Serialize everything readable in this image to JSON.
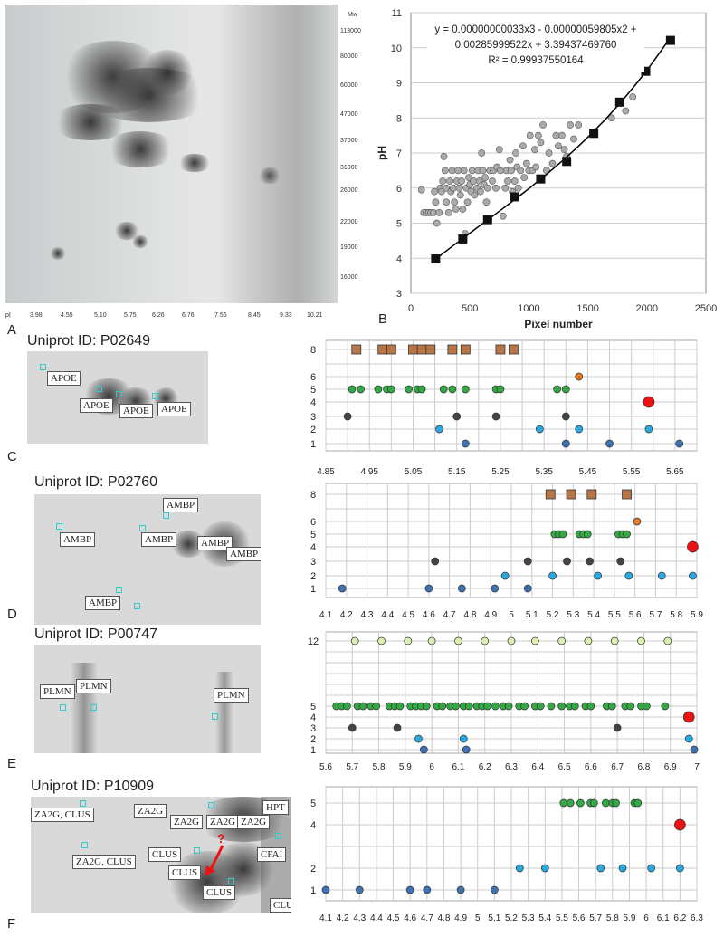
{
  "labels": {
    "A": "A",
    "B": "B",
    "C": "C",
    "D": "D",
    "E": "E",
    "F": "F"
  },
  "gelA": {
    "mw_title": "Mw",
    "pi_title": "pI",
    "mw_ticks": [
      "113000",
      "80000",
      "60000",
      "47000",
      "37000",
      "31000",
      "26000",
      "22000",
      "19000",
      "16000"
    ],
    "pi_ticks": [
      "3.98",
      "4.55",
      "5.10",
      "5.75",
      "6.26",
      "6.76",
      "7.56",
      "8.45",
      "9.33",
      "10.21"
    ]
  },
  "panels": {
    "C": {
      "uniprot": "Uniprot ID: P02649",
      "tags": [
        "APOE",
        "APOE",
        "APOE",
        "APOE"
      ]
    },
    "D": {
      "uniprot": "Uniprot ID: P02760",
      "tags": [
        "AMBP",
        "AMBP",
        "AMBP",
        "AMBP",
        "AMBP",
        "AMBP"
      ]
    },
    "E": {
      "uniprot": "Uniprot ID: P00747",
      "tags": [
        "PLMN",
        "PLMN",
        "PLMN"
      ]
    },
    "F": {
      "uniprot": "Uniprot ID: P10909",
      "tags": [
        "ZA2G, CLUS",
        "ZA2G, CLUS",
        "ZA2G",
        "ZA2G",
        "ZA2G",
        "ZA2G",
        "HPT",
        "CLUS",
        "CLUS",
        "CLUS",
        "CFAI",
        "CLUS"
      ],
      "question": "?"
    }
  },
  "colors": {
    "line": "#000000",
    "scatter": "#aaaaaa",
    "dark_blue": "#3f72b5",
    "light_blue": "#2aa8e0",
    "charcoal": "#444444",
    "green": "#33a844",
    "orange": "#e07b2a",
    "brown": "#b87545",
    "red": "#ee1111",
    "lime": "#dcefb0"
  },
  "chart_data": [
    {
      "id": "B",
      "type": "scatter",
      "xlabel": "Pixel number",
      "ylabel": "pH",
      "xlim": [
        0,
        2500
      ],
      "ylim": [
        3,
        11
      ],
      "xticks": [
        0,
        500,
        1000,
        1500,
        2000,
        2500
      ],
      "yticks": [
        3,
        4,
        5,
        6,
        7,
        8,
        9,
        10,
        11
      ],
      "annotation": {
        "line1": "y = 0.00000000033x3 - 0.00000059805x2 +",
        "line2": "0.00285999522x + 3.39437469760",
        "line3": "R² = 0.99937550164"
      },
      "fit_coefficients": [
        3.3e-10,
        -5.9805e-07,
        0.00285999522,
        3.3943746976
      ],
      "calibration_points": [
        [
          210,
          3.98
        ],
        [
          440,
          4.55
        ],
        [
          650,
          5.1
        ],
        [
          880,
          5.75
        ],
        [
          1100,
          6.26
        ],
        [
          1320,
          6.76
        ],
        [
          1550,
          7.56
        ],
        [
          1770,
          8.45
        ],
        [
          1990,
          9.33
        ],
        [
          2200,
          10.21
        ]
      ],
      "scatter_points": [
        [
          90,
          5.95
        ],
        [
          110,
          5.3
        ],
        [
          130,
          5.3
        ],
        [
          150,
          5.3
        ],
        [
          170,
          5.3
        ],
        [
          190,
          5.3
        ],
        [
          200,
          5.9
        ],
        [
          210,
          5.6
        ],
        [
          220,
          5.0
        ],
        [
          240,
          5.3
        ],
        [
          250,
          6.0
        ],
        [
          260,
          5.9
        ],
        [
          270,
          6.2
        ],
        [
          280,
          6.9
        ],
        [
          290,
          6.5
        ],
        [
          300,
          6.0
        ],
        [
          300,
          5.6
        ],
        [
          320,
          5.3
        ],
        [
          330,
          6.2
        ],
        [
          340,
          5.9
        ],
        [
          350,
          6.5
        ],
        [
          360,
          6.0
        ],
        [
          370,
          5.6
        ],
        [
          380,
          5.4
        ],
        [
          390,
          6.2
        ],
        [
          400,
          6.5
        ],
        [
          410,
          6.0
        ],
        [
          420,
          5.8
        ],
        [
          430,
          6.2
        ],
        [
          440,
          5.4
        ],
        [
          450,
          6.5
        ],
        [
          460,
          4.7
        ],
        [
          470,
          6.0
        ],
        [
          480,
          5.6
        ],
        [
          490,
          6.3
        ],
        [
          500,
          6.1
        ],
        [
          510,
          5.9
        ],
        [
          520,
          6.5
        ],
        [
          530,
          6.2
        ],
        [
          540,
          5.8
        ],
        [
          560,
          6.0
        ],
        [
          570,
          6.5
        ],
        [
          580,
          6.2
        ],
        [
          590,
          5.9
        ],
        [
          600,
          7.0
        ],
        [
          610,
          6.5
        ],
        [
          620,
          6.1
        ],
        [
          630,
          6.3
        ],
        [
          640,
          5.6
        ],
        [
          650,
          6.0
        ],
        [
          660,
          5.1
        ],
        [
          670,
          6.5
        ],
        [
          690,
          6.2
        ],
        [
          700,
          6.5
        ],
        [
          720,
          6.0
        ],
        [
          730,
          6.6
        ],
        [
          750,
          7.1
        ],
        [
          760,
          6.5
        ],
        [
          780,
          5.2
        ],
        [
          800,
          6.0
        ],
        [
          810,
          6.5
        ],
        [
          820,
          6.2
        ],
        [
          840,
          6.8
        ],
        [
          850,
          6.5
        ],
        [
          860,
          5.9
        ],
        [
          880,
          6.2
        ],
        [
          890,
          7.0
        ],
        [
          900,
          6.6
        ],
        [
          910,
          6.0
        ],
        [
          930,
          6.5
        ],
        [
          950,
          7.2
        ],
        [
          960,
          6.3
        ],
        [
          980,
          6.7
        ],
        [
          1000,
          6.5
        ],
        [
          1010,
          7.5
        ],
        [
          1030,
          6.5
        ],
        [
          1050,
          7.1
        ],
        [
          1060,
          6.6
        ],
        [
          1080,
          7.5
        ],
        [
          1100,
          7.3
        ],
        [
          1120,
          7.8
        ],
        [
          1150,
          6.5
        ],
        [
          1170,
          7.0
        ],
        [
          1200,
          6.7
        ],
        [
          1230,
          7.5
        ],
        [
          1250,
          7.2
        ],
        [
          1280,
          7.5
        ],
        [
          1300,
          7.1
        ],
        [
          1320,
          6.9
        ],
        [
          1350,
          7.8
        ],
        [
          1380,
          7.4
        ],
        [
          1420,
          7.8
        ],
        [
          1700,
          8.0
        ],
        [
          1820,
          8.2
        ],
        [
          1880,
          8.6
        ]
      ]
    },
    {
      "id": "C",
      "type": "scatter",
      "xlim": [
        4.85,
        5.7
      ],
      "xticks": [
        "4.85",
        "4.95",
        "5.05",
        "5.15",
        "5.25",
        "5.35",
        "5.45",
        "5.55",
        "5.65"
      ],
      "yticks": [
        "1",
        "2",
        "3",
        "4",
        "5",
        "6",
        "8"
      ],
      "series": [
        {
          "color": "dark_blue",
          "y": 1,
          "x": [
            5.17,
            5.4,
            5.5,
            5.66
          ]
        },
        {
          "color": "light_blue",
          "y": 2,
          "x": [
            5.11,
            5.34,
            5.43,
            5.59
          ]
        },
        {
          "color": "charcoal",
          "y": 3,
          "x": [
            4.9,
            5.15,
            5.24,
            5.4
          ]
        },
        {
          "color": "red",
          "y": 4,
          "big": true,
          "x": [
            5.59
          ]
        },
        {
          "color": "green",
          "y": 5,
          "x": [
            4.91,
            4.93,
            4.97,
            4.99,
            5.0,
            5.04,
            5.06,
            5.07,
            5.12,
            5.14,
            5.17,
            5.24,
            5.25,
            5.38,
            5.4
          ]
        },
        {
          "color": "orange",
          "y": 6,
          "x": [
            5.43
          ]
        },
        {
          "color": "brown",
          "y": 8,
          "square": true,
          "x": [
            4.92,
            4.98,
            5.0,
            5.05,
            5.07,
            5.09,
            5.14,
            5.17,
            5.25,
            5.28
          ]
        }
      ]
    },
    {
      "id": "D",
      "type": "scatter",
      "xlim": [
        4.1,
        5.9
      ],
      "xticks": [
        "4.1",
        "4.2",
        "4.3",
        "4.4",
        "4.5",
        "4.6",
        "4.7",
        "4.8",
        "4.9",
        "5",
        "5.1",
        "5.2",
        "5.3",
        "5.4",
        "5.5",
        "5.6",
        "5.7",
        "5.8",
        "5.9"
      ],
      "yticks": [
        "1",
        "2",
        "3",
        "4",
        "5",
        "6",
        "8"
      ],
      "series": [
        {
          "color": "dark_blue",
          "y": 1,
          "x": [
            4.18,
            4.6,
            4.76,
            4.92,
            5.08
          ]
        },
        {
          "color": "light_blue",
          "y": 2,
          "x": [
            4.97,
            5.2,
            5.42,
            5.57,
            5.73,
            5.88
          ]
        },
        {
          "color": "charcoal",
          "y": 3,
          "x": [
            4.63,
            5.08,
            5.27,
            5.38,
            5.53
          ]
        },
        {
          "color": "red",
          "y": 4,
          "big": true,
          "x": [
            5.88
          ]
        },
        {
          "color": "green",
          "y": 5,
          "x": [
            5.21,
            5.23,
            5.25,
            5.33,
            5.35,
            5.37,
            5.52,
            5.54,
            5.56
          ]
        },
        {
          "color": "orange",
          "y": 6,
          "x": [
            5.61
          ]
        },
        {
          "color": "brown",
          "y": 8,
          "square": true,
          "x": [
            5.19,
            5.29,
            5.39,
            5.56
          ]
        }
      ]
    },
    {
      "id": "E",
      "type": "scatter",
      "xlim": [
        5.6,
        7.0
      ],
      "xticks": [
        "5.6",
        "5.7",
        "5.8",
        "5.9",
        "6",
        "6.1",
        "6.2",
        "6.3",
        "6.4",
        "6.5",
        "6.6",
        "6.7",
        "6.8",
        "6.9",
        "7"
      ],
      "yticks": [
        "1",
        "2",
        "3",
        "4",
        "5",
        "12"
      ],
      "series": [
        {
          "color": "dark_blue",
          "y": 1,
          "x": [
            5.97,
            6.13,
            6.99
          ]
        },
        {
          "color": "light_blue",
          "y": 2,
          "x": [
            5.95,
            6.12,
            6.97
          ]
        },
        {
          "color": "charcoal",
          "y": 3,
          "x": [
            5.7,
            5.87,
            6.7
          ]
        },
        {
          "color": "red",
          "y": 4,
          "big": true,
          "x": [
            6.97
          ]
        },
        {
          "color": "green",
          "y": 5,
          "x": [
            5.64,
            5.66,
            5.68,
            5.72,
            5.74,
            5.77,
            5.79,
            5.84,
            5.86,
            5.88,
            5.92,
            5.94,
            5.96,
            5.98,
            6.02,
            6.04,
            6.07,
            6.09,
            6.12,
            6.14,
            6.17,
            6.19,
            6.21,
            6.24,
            6.27,
            6.29,
            6.33,
            6.35,
            6.39,
            6.41,
            6.45,
            6.49,
            6.52,
            6.54,
            6.58,
            6.6,
            6.66,
            6.68,
            6.73,
            6.75,
            6.79,
            6.81,
            6.88
          ]
        },
        {
          "color": "lime",
          "y": 12,
          "x": [
            5.71,
            5.81,
            5.91,
            6.0,
            6.1,
            6.2,
            6.3,
            6.39,
            6.49,
            6.59,
            6.69,
            6.79,
            6.89
          ]
        }
      ]
    },
    {
      "id": "F",
      "type": "scatter",
      "xlim": [
        4.1,
        6.3
      ],
      "xticks": [
        "4.1",
        "4.2",
        "4.3",
        "4.4",
        "4.5",
        "4.6",
        "4.7",
        "4.8",
        "4.9",
        "5",
        "5.1",
        "5.2",
        "5.3",
        "5.4",
        "5.5",
        "5.6",
        "5.7",
        "5.8",
        "5.9",
        "6",
        "6.1",
        "6.2",
        "6.3"
      ],
      "yticks": [
        "1",
        "2",
        "4",
        "5"
      ],
      "series": [
        {
          "color": "dark_blue",
          "y": 1,
          "x": [
            4.1,
            4.3,
            4.6,
            4.7,
            4.9,
            5.1
          ]
        },
        {
          "color": "light_blue",
          "y": 2,
          "x": [
            5.25,
            5.4,
            5.73,
            5.86,
            6.03,
            6.2
          ]
        },
        {
          "color": "red",
          "y": 4,
          "big": true,
          "x": [
            6.2
          ]
        },
        {
          "color": "green",
          "y": 5,
          "x": [
            5.51,
            5.55,
            5.61,
            5.67,
            5.69,
            5.76,
            5.8,
            5.82,
            5.93,
            5.95
          ]
        }
      ]
    }
  ]
}
